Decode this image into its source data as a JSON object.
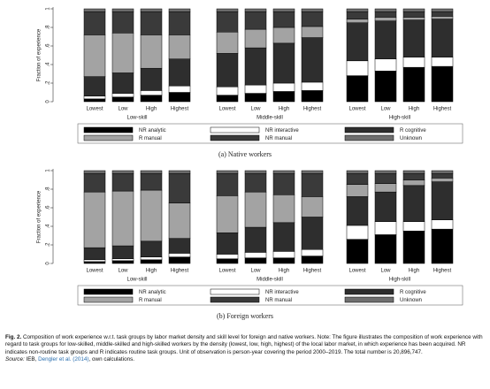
{
  "chart_data": [
    {
      "type": "stacked-bar",
      "title": "(a) Native workers",
      "y_label": "Fraction of experience",
      "categories": [
        "Lowest",
        "Low",
        "High",
        "Highest",
        "Lowest",
        "Low",
        "High",
        "Highest",
        "Lowest",
        "Low",
        "High",
        "Highest"
      ],
      "groups": [
        "Low-skill",
        "Middle-skill",
        "High-skill"
      ],
      "ylim": [
        0,
        1
      ],
      "yticks": [
        0,
        {
          "value": 0.2,
          "label": ".2"
        },
        {
          "value": 0.4,
          "label": ".4"
        },
        {
          "value": 0.6,
          "label": ".6"
        },
        {
          "value": 0.8,
          "label": ".8"
        },
        1
      ],
      "series": [
        {
          "name": "NR analytic",
          "color": "#000000",
          "values": [
            0.03,
            0.05,
            0.07,
            0.1,
            0.07,
            0.09,
            0.11,
            0.12,
            0.28,
            0.33,
            0.37,
            0.38
          ]
        },
        {
          "name": "NR interactive",
          "color": "#ffffff",
          "values": [
            0.03,
            0.04,
            0.05,
            0.07,
            0.09,
            0.09,
            0.09,
            0.09,
            0.16,
            0.13,
            0.11,
            0.1
          ]
        },
        {
          "name": "R cognitive",
          "color": "#2e2e2e",
          "values": [
            0.21,
            0.22,
            0.24,
            0.29,
            0.36,
            0.4,
            0.43,
            0.48,
            0.41,
            0.41,
            0.4,
            0.41
          ]
        },
        {
          "name": "R manual",
          "color": "#a3a3a3",
          "values": [
            0.45,
            0.43,
            0.36,
            0.26,
            0.23,
            0.2,
            0.17,
            0.12,
            0.04,
            0.04,
            0.03,
            0.03
          ]
        },
        {
          "name": "NR manual",
          "color": "#3a3a3a",
          "values": [
            0.25,
            0.23,
            0.25,
            0.25,
            0.22,
            0.19,
            0.17,
            0.16,
            0.08,
            0.06,
            0.06,
            0.05
          ]
        },
        {
          "name": "Unknown",
          "color": "#6f6f6f",
          "values": [
            0.03,
            0.03,
            0.03,
            0.03,
            0.03,
            0.03,
            0.03,
            0.03,
            0.03,
            0.03,
            0.03,
            0.03
          ]
        }
      ]
    },
    {
      "type": "stacked-bar",
      "title": "(b) Foreign workers",
      "y_label": "Fraction of experience",
      "categories": [
        "Lowest",
        "Low",
        "High",
        "Highest",
        "Lowest",
        "Low",
        "High",
        "Highest",
        "Lowest",
        "Low",
        "High",
        "Highest"
      ],
      "groups": [
        "Low-skill",
        "Middle-skill",
        "High-skill"
      ],
      "ylim": [
        0,
        1
      ],
      "yticks": [
        0,
        {
          "value": 0.2,
          "label": ".2"
        },
        {
          "value": 0.4,
          "label": ".4"
        },
        {
          "value": 0.6,
          "label": ".6"
        },
        {
          "value": 0.8,
          "label": ".8"
        },
        1
      ],
      "series": [
        {
          "name": "NR analytic",
          "color": "#000000",
          "values": [
            0.02,
            0.03,
            0.04,
            0.07,
            0.05,
            0.06,
            0.06,
            0.08,
            0.26,
            0.31,
            0.35,
            0.37
          ]
        },
        {
          "name": "NR interactive",
          "color": "#ffffff",
          "values": [
            0.02,
            0.02,
            0.03,
            0.04,
            0.05,
            0.06,
            0.07,
            0.07,
            0.15,
            0.14,
            0.1,
            0.1
          ]
        },
        {
          "name": "R cognitive",
          "color": "#2e2e2e",
          "values": [
            0.13,
            0.14,
            0.17,
            0.16,
            0.23,
            0.27,
            0.31,
            0.35,
            0.31,
            0.32,
            0.39,
            0.41
          ]
        },
        {
          "name": "R manual",
          "color": "#a3a3a3",
          "values": [
            0.6,
            0.59,
            0.55,
            0.38,
            0.4,
            0.38,
            0.3,
            0.22,
            0.13,
            0.09,
            0.06,
            0.04
          ]
        },
        {
          "name": "NR manual",
          "color": "#3a3a3a",
          "values": [
            0.2,
            0.19,
            0.18,
            0.32,
            0.24,
            0.2,
            0.23,
            0.25,
            0.12,
            0.11,
            0.07,
            0.05
          ]
        },
        {
          "name": "Unknown",
          "color": "#6f6f6f",
          "values": [
            0.03,
            0.03,
            0.03,
            0.03,
            0.03,
            0.03,
            0.03,
            0.03,
            0.03,
            0.03,
            0.03,
            0.03
          ]
        }
      ]
    }
  ],
  "caption": {
    "label": "Fig. 2.",
    "text": "Composition of work experience w.r.t. task groups by labor market density and skill level for foreign and native workers. Note: The figure illustrates the composition of work experience with regard to task groups for low-skilled, middle-skilled and high-skilled workers by the density (lowest, low, high, highest) of the local labor market, in which experience has been acquired. NR indicates non-routine task groups and R indicates routine task groups. Unit of observation is person-year covering the period 2000–2019. The total number is 20,896,747.",
    "source_label": "Source:",
    "source": "IEB,",
    "source_link": "Dengler et al. (2014)",
    "source_end": ", own calculations."
  }
}
